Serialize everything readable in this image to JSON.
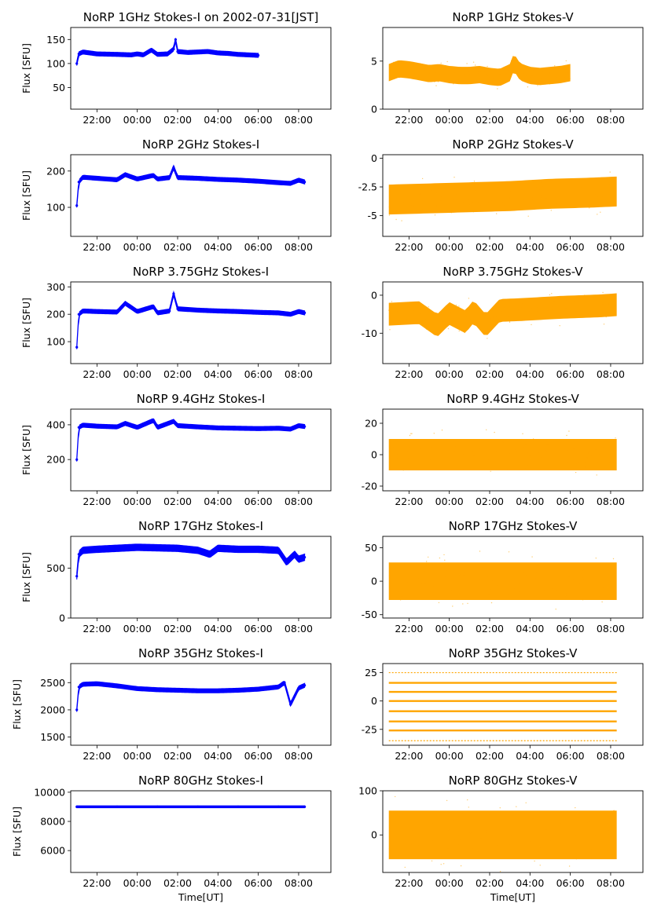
{
  "figure": {
    "type": "norp-multipanel-timeseries"
  },
  "chart_data": [
    {
      "type": "scatter",
      "title": "NoRP 1GHz Stokes-I on 2002-07-31[JST]",
      "ylabel": "Flux [SFU]",
      "xlabel": "",
      "ylim": [
        5,
        175
      ],
      "yticks": [
        50,
        100,
        150
      ],
      "color": "#0000ff",
      "xticks": [
        "22:00",
        "00:00",
        "02:00",
        "04:00",
        "06:00",
        "08:00"
      ],
      "xlim": [
        -3.3,
        9.6
      ],
      "series": [
        {
          "name": "Stokes-I",
          "x": [
            -3.0,
            -2.9,
            -2.7,
            -2.0,
            -1.0,
            -0.3,
            0.0,
            0.3,
            0.7,
            1.0,
            1.5,
            1.8,
            1.9,
            2.0,
            2.5,
            3.0,
            3.5,
            4.0,
            4.5,
            5.0,
            5.5,
            6.0
          ],
          "y": [
            100,
            120,
            124,
            120,
            119,
            118,
            120,
            118,
            128,
            119,
            120,
            130,
            150,
            125,
            123,
            124,
            125,
            122,
            121,
            119,
            118,
            117
          ]
        }
      ]
    },
    {
      "type": "scatter",
      "title": "NoRP 1GHz Stokes-V",
      "ylabel": "",
      "xlabel": "",
      "ylim": [
        0,
        8.5
      ],
      "yticks": [
        0,
        5
      ],
      "color": "#ffa500",
      "xticks": [
        "22:00",
        "00:00",
        "02:00",
        "04:00",
        "06:00",
        "08:00"
      ],
      "xlim": [
        -3.3,
        9.6
      ],
      "series": [
        {
          "name": "Stokes-V",
          "x": [
            -3.0,
            -2.5,
            -2.0,
            -1.5,
            -1.0,
            -0.5,
            0.0,
            0.5,
            1.0,
            1.5,
            2.0,
            2.5,
            3.0,
            3.2,
            3.5,
            4.0,
            4.5,
            5.0,
            5.5,
            6.0
          ],
          "y": [
            3.8,
            4.2,
            4.1,
            3.9,
            3.7,
            3.8,
            3.6,
            3.5,
            3.5,
            3.6,
            3.4,
            3.3,
            3.8,
            4.9,
            3.9,
            3.5,
            3.4,
            3.5,
            3.6,
            3.8
          ]
        }
      ]
    },
    {
      "type": "scatter",
      "title": "NoRP 2GHz Stokes-I",
      "ylabel": "Flux [SFU]",
      "xlabel": "",
      "ylim": [
        20,
        245
      ],
      "yticks": [
        100,
        200
      ],
      "color": "#0000ff",
      "xticks": [
        "22:00",
        "00:00",
        "02:00",
        "04:00",
        "06:00",
        "08:00"
      ],
      "xlim": [
        -3.3,
        9.6
      ],
      "series": [
        {
          "name": "Stokes-I",
          "x": [
            -3.0,
            -2.9,
            -2.7,
            -2.0,
            -1.0,
            -0.6,
            0.0,
            0.8,
            1.0,
            1.6,
            1.8,
            2.0,
            3.0,
            4.0,
            5.0,
            6.0,
            7.0,
            7.6,
            8.0,
            8.3
          ],
          "y": [
            105,
            170,
            183,
            180,
            176,
            190,
            178,
            188,
            178,
            182,
            210,
            182,
            180,
            177,
            175,
            172,
            168,
            166,
            175,
            170
          ]
        }
      ]
    },
    {
      "type": "scatter",
      "title": "NoRP 2GHz Stokes-V",
      "ylabel": "",
      "xlabel": "",
      "ylim": [
        -6.8,
        0.3
      ],
      "yticks": [
        0.0,
        -2.5,
        -5.0
      ],
      "color": "#ffa500",
      "xticks": [
        "22:00",
        "00:00",
        "02:00",
        "04:00",
        "06:00",
        "08:00"
      ],
      "xlim": [
        -3.3,
        9.6
      ],
      "series": [
        {
          "name": "Stokes-V",
          "x": [
            -3.0,
            -1.0,
            1.0,
            3.0,
            5.0,
            7.0,
            8.3
          ],
          "y": [
            -3.6,
            -3.5,
            -3.4,
            -3.3,
            -3.1,
            -3.0,
            -2.9
          ]
        }
      ]
    },
    {
      "type": "scatter",
      "title": "NoRP 3.75GHz Stokes-I",
      "ylabel": "Flux [SFU]",
      "xlabel": "",
      "ylim": [
        20,
        318
      ],
      "yticks": [
        100,
        200,
        300
      ],
      "color": "#0000ff",
      "xticks": [
        "22:00",
        "00:00",
        "02:00",
        "04:00",
        "06:00",
        "08:00"
      ],
      "xlim": [
        -3.3,
        9.6
      ],
      "series": [
        {
          "name": "Stokes-I",
          "x": [
            -3.0,
            -2.9,
            -2.7,
            -2.0,
            -1.0,
            -0.6,
            0.0,
            0.8,
            1.0,
            1.6,
            1.8,
            2.0,
            3.0,
            4.0,
            5.0,
            6.0,
            7.0,
            7.6,
            8.0,
            8.3
          ],
          "y": [
            80,
            200,
            212,
            210,
            208,
            240,
            210,
            228,
            205,
            212,
            275,
            220,
            215,
            212,
            210,
            207,
            205,
            200,
            210,
            205
          ]
        }
      ]
    },
    {
      "type": "scatter",
      "title": "NoRP 3.75GHz Stokes-V",
      "ylabel": "",
      "xlabel": "",
      "ylim": [
        -18,
        3.5
      ],
      "yticks": [
        0,
        -10
      ],
      "color": "#ffa500",
      "xticks": [
        "22:00",
        "00:00",
        "02:00",
        "04:00",
        "06:00",
        "08:00"
      ],
      "xlim": [
        -3.3,
        9.6
      ],
      "series": [
        {
          "name": "Stokes-V",
          "x": [
            -3.0,
            -1.5,
            -0.6,
            0.0,
            0.8,
            1.2,
            1.8,
            2.5,
            3.5,
            4.5,
            5.5,
            6.5,
            7.5,
            8.3
          ],
          "y": [
            -5.0,
            -4.6,
            -8.0,
            -4.8,
            -7.0,
            -4.3,
            -8.0,
            -4.0,
            -3.8,
            -3.5,
            -3.2,
            -3.0,
            -2.8,
            -2.5
          ]
        }
      ]
    },
    {
      "type": "scatter",
      "title": "NoRP 9.4GHz Stokes-I",
      "ylabel": "Flux [SFU]",
      "xlabel": "",
      "ylim": [
        20,
        490
      ],
      "yticks": [
        200,
        400
      ],
      "color": "#0000ff",
      "xticks": [
        "22:00",
        "00:00",
        "02:00",
        "04:00",
        "06:00",
        "08:00"
      ],
      "xlim": [
        -3.3,
        9.6
      ],
      "series": [
        {
          "name": "Stokes-I",
          "x": [
            -3.0,
            -2.9,
            -2.7,
            -2.0,
            -1.0,
            -0.6,
            0.0,
            0.8,
            1.0,
            1.8,
            2.0,
            3.0,
            4.0,
            5.0,
            6.0,
            7.0,
            7.6,
            8.0,
            8.3
          ],
          "y": [
            200,
            385,
            398,
            392,
            388,
            408,
            385,
            425,
            385,
            420,
            395,
            388,
            382,
            380,
            378,
            380,
            375,
            395,
            390
          ]
        }
      ]
    },
    {
      "type": "scatter",
      "title": "NoRP 9.4GHz Stokes-V",
      "ylabel": "",
      "xlabel": "",
      "ylim": [
        -23,
        29
      ],
      "yticks": [
        20,
        0,
        -20
      ],
      "color": "#ffa500",
      "xticks": [
        "22:00",
        "00:00",
        "02:00",
        "04:00",
        "06:00",
        "08:00"
      ],
      "xlim": [
        -3.3,
        9.6
      ],
      "series": [
        {
          "name": "Stokes-V",
          "x": [
            -3.0,
            -1.0,
            1.0,
            3.0,
            5.0,
            7.0,
            8.3
          ],
          "y": [
            0,
            0,
            0,
            0,
            0,
            0,
            0
          ]
        }
      ]
    },
    {
      "type": "scatter",
      "title": "NoRP 17GHz Stokes-I",
      "ylabel": "Flux [SFU]",
      "xlabel": "",
      "ylim": [
        0,
        820
      ],
      "yticks": [
        0,
        500
      ],
      "color": "#0000ff",
      "xticks": [
        "22:00",
        "00:00",
        "02:00",
        "04:00",
        "06:00",
        "08:00"
      ],
      "xlim": [
        -3.3,
        9.6
      ],
      "series": [
        {
          "name": "Stokes-I",
          "x": [
            -3.0,
            -2.9,
            -2.7,
            -2.0,
            -1.0,
            0.0,
            1.0,
            2.0,
            3.0,
            3.6,
            4.0,
            5.0,
            6.0,
            7.0,
            7.4,
            7.8,
            8.0,
            8.3
          ],
          "y": [
            420,
            640,
            680,
            690,
            700,
            710,
            705,
            700,
            680,
            640,
            700,
            690,
            690,
            680,
            560,
            640,
            590,
            610
          ]
        }
      ]
    },
    {
      "type": "scatter",
      "title": "NoRP 17GHz Stokes-V",
      "ylabel": "",
      "xlabel": "",
      "ylim": [
        -55,
        67
      ],
      "yticks": [
        50,
        0,
        -50
      ],
      "color": "#ffa500",
      "xticks": [
        "22:00",
        "00:00",
        "02:00",
        "04:00",
        "06:00",
        "08:00"
      ],
      "xlim": [
        -3.3,
        9.6
      ],
      "series": [
        {
          "name": "Stokes-V",
          "x": [
            -3.0,
            -1.0,
            1.0,
            3.0,
            5.0,
            7.0,
            8.3
          ],
          "y": [
            0,
            0,
            0,
            0,
            0,
            0,
            0
          ]
        }
      ]
    },
    {
      "type": "scatter",
      "title": "NoRP 35GHz Stokes-I",
      "ylabel": "Flux [SFU]",
      "xlabel": "",
      "ylim": [
        1350,
        2850
      ],
      "yticks": [
        1500,
        2000,
        2500
      ],
      "color": "#0000ff",
      "xticks": [
        "22:00",
        "00:00",
        "02:00",
        "04:00",
        "06:00",
        "08:00"
      ],
      "xlim": [
        -3.3,
        9.6
      ],
      "series": [
        {
          "name": "Stokes-I",
          "x": [
            -3.0,
            -2.9,
            -2.7,
            -2.0,
            -1.0,
            0.0,
            1.0,
            2.0,
            3.0,
            4.0,
            5.0,
            6.0,
            7.0,
            7.3,
            7.6,
            8.0,
            8.3
          ],
          "y": [
            2000,
            2420,
            2470,
            2480,
            2440,
            2390,
            2370,
            2360,
            2350,
            2350,
            2360,
            2380,
            2420,
            2500,
            2100,
            2400,
            2450
          ]
        }
      ]
    },
    {
      "type": "scatter",
      "title": "NoRP 35GHz Stokes-V",
      "ylabel": "",
      "xlabel": "",
      "ylim": [
        -39,
        33
      ],
      "yticks": [
        25,
        0,
        -25
      ],
      "color": "#ffa500",
      "xticks": [
        "22:00",
        "00:00",
        "02:00",
        "04:00",
        "06:00",
        "08:00"
      ],
      "xlim": [
        -3.3,
        9.6
      ],
      "series": [
        {
          "name": "Stokes-V",
          "x": [
            -3.0,
            8.3
          ],
          "y": [
            0,
            0
          ]
        }
      ]
    },
    {
      "type": "scatter",
      "title": "NoRP 80GHz Stokes-I",
      "ylabel": "Flux [SFU]",
      "xlabel": "Time[UT]",
      "ylim": [
        4500,
        10100
      ],
      "yticks": [
        6000,
        8000,
        10000
      ],
      "color": "#0000ff",
      "xticks": [
        "22:00",
        "00:00",
        "02:00",
        "04:00",
        "06:00",
        "08:00"
      ],
      "xlim": [
        -3.3,
        9.6
      ],
      "series": [
        {
          "name": "Stokes-I",
          "x": [
            -3.0,
            -1.0,
            1.0,
            3.0,
            5.0,
            7.0,
            8.3
          ],
          "y": [
            9000,
            9000,
            9000,
            9000,
            9000,
            9000,
            9000
          ]
        }
      ]
    },
    {
      "type": "scatter",
      "title": "NoRP 80GHz Stokes-V",
      "ylabel": "",
      "xlabel": "Time[UT]",
      "ylim": [
        -85,
        100
      ],
      "yticks": [
        100,
        0
      ],
      "color": "#ffa500",
      "xticks": [
        "22:00",
        "00:00",
        "02:00",
        "04:00",
        "06:00",
        "08:00"
      ],
      "xlim": [
        -3.3,
        9.6
      ],
      "series": [
        {
          "name": "Stokes-V",
          "x": [
            -3.0,
            -1.0,
            1.0,
            3.0,
            5.0,
            7.0,
            8.3
          ],
          "y": [
            0,
            0,
            0,
            0,
            0,
            0,
            0
          ]
        }
      ]
    }
  ]
}
